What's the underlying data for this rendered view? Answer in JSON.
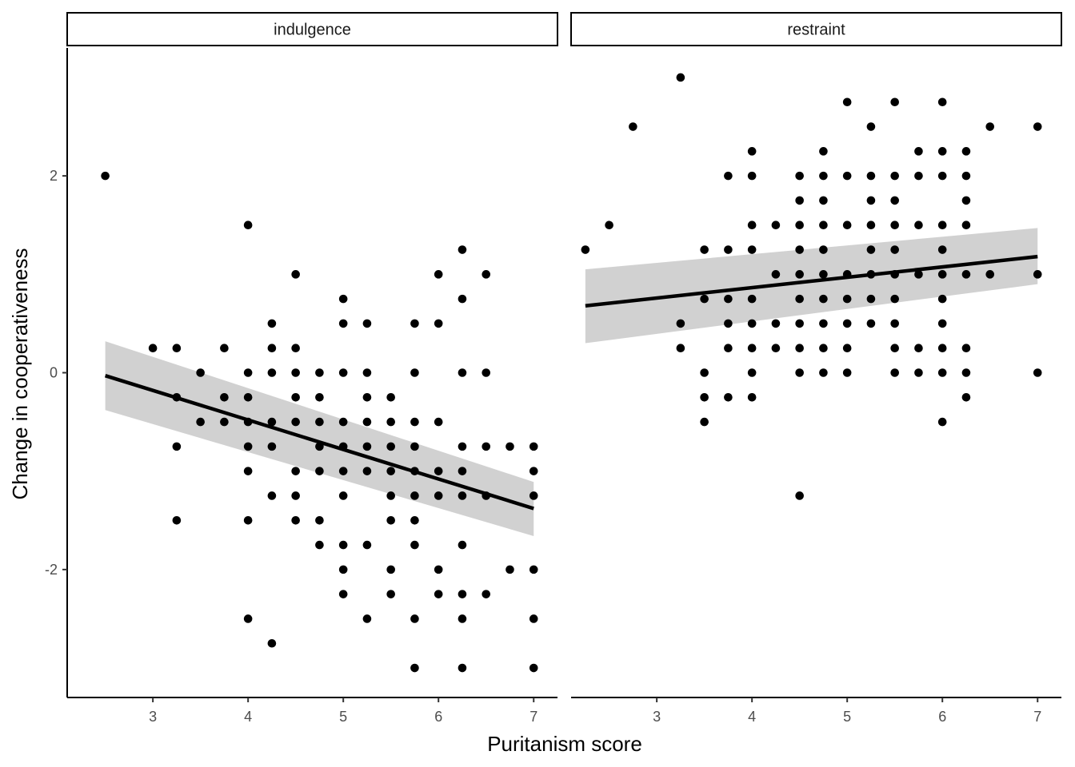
{
  "chart_data": {
    "type": "scatter",
    "xlabel": "Puritanism score",
    "ylabel": "Change in cooperativeness",
    "xlim": [
      2.1,
      7.25
    ],
    "ylim": [
      -3.3,
      3.3
    ],
    "x_ticks": [
      3,
      4,
      5,
      6,
      7
    ],
    "y_ticks": [
      -2,
      0,
      2
    ],
    "x_tick_labels": [
      "3",
      "4",
      "5",
      "6",
      "7"
    ],
    "y_tick_labels": [
      "-2",
      "0",
      "2"
    ],
    "grid": false,
    "colors": {
      "point": "#000000",
      "fit_line": "#000000",
      "ribbon": "#cccccc",
      "axis": "#000000",
      "strip_fill": "#ffffff"
    },
    "panels": [
      {
        "strip_label": "indulgence",
        "fit": {
          "x": [
            2.5,
            7.0
          ],
          "y": [
            -0.03,
            -1.38
          ]
        },
        "ribbon": {
          "x": [
            2.5,
            7.0
          ],
          "lower": [
            -0.38,
            -1.66
          ],
          "upper": [
            0.32,
            -1.11
          ]
        },
        "points": [
          [
            2.5,
            2
          ],
          [
            3,
            0.25
          ],
          [
            3.25,
            0.25
          ],
          [
            3.25,
            -0.25
          ],
          [
            3.25,
            -0.75
          ],
          [
            3.25,
            -1.5
          ],
          [
            3.5,
            0
          ],
          [
            3.5,
            -0.5
          ],
          [
            3.75,
            0.25
          ],
          [
            3.75,
            -0.25
          ],
          [
            3.75,
            -0.5
          ],
          [
            4,
            1.5
          ],
          [
            4,
            0
          ],
          [
            4,
            -0.25
          ],
          [
            4,
            -0.5
          ],
          [
            4,
            -0.75
          ],
          [
            4,
            -1
          ],
          [
            4,
            -1.5
          ],
          [
            4,
            -2.5
          ],
          [
            4.25,
            0.5
          ],
          [
            4.25,
            0.25
          ],
          [
            4.25,
            0
          ],
          [
            4.25,
            -0.5
          ],
          [
            4.25,
            -0.75
          ],
          [
            4.25,
            -1.25
          ],
          [
            4.25,
            -2.75
          ],
          [
            4.5,
            1
          ],
          [
            4.5,
            0.25
          ],
          [
            4.5,
            0
          ],
          [
            4.5,
            -0.25
          ],
          [
            4.5,
            -0.5
          ],
          [
            4.5,
            -1
          ],
          [
            4.5,
            -1.25
          ],
          [
            4.5,
            -1.5
          ],
          [
            4.75,
            0
          ],
          [
            4.75,
            -0.25
          ],
          [
            4.75,
            -0.5
          ],
          [
            4.75,
            -0.75
          ],
          [
            4.75,
            -1
          ],
          [
            4.75,
            -1.5
          ],
          [
            4.75,
            -1.75
          ],
          [
            5,
            0.75
          ],
          [
            5,
            0.5
          ],
          [
            5,
            0
          ],
          [
            5,
            -0.5
          ],
          [
            5,
            -0.75
          ],
          [
            5,
            -1
          ],
          [
            5,
            -1.25
          ],
          [
            5,
            -1.75
          ],
          [
            5,
            -2
          ],
          [
            5,
            -2.25
          ],
          [
            5.25,
            0.5
          ],
          [
            5.25,
            0
          ],
          [
            5.25,
            -0.25
          ],
          [
            5.25,
            -0.5
          ],
          [
            5.25,
            -0.75
          ],
          [
            5.25,
            -1
          ],
          [
            5.25,
            -1.75
          ],
          [
            5.25,
            -2.5
          ],
          [
            5.5,
            -0.25
          ],
          [
            5.5,
            -0.5
          ],
          [
            5.5,
            -0.75
          ],
          [
            5.5,
            -1
          ],
          [
            5.5,
            -1.25
          ],
          [
            5.5,
            -1.5
          ],
          [
            5.5,
            -2
          ],
          [
            5.5,
            -2.25
          ],
          [
            5.75,
            0.5
          ],
          [
            5.75,
            0
          ],
          [
            5.75,
            -0.5
          ],
          [
            5.75,
            -0.75
          ],
          [
            5.75,
            -1
          ],
          [
            5.75,
            -1.25
          ],
          [
            5.75,
            -1.5
          ],
          [
            5.75,
            -1.75
          ],
          [
            5.75,
            -2.5
          ],
          [
            5.75,
            -3
          ],
          [
            6,
            1
          ],
          [
            6,
            0.5
          ],
          [
            6,
            -0.5
          ],
          [
            6,
            -1
          ],
          [
            6,
            -1.25
          ],
          [
            6,
            -2
          ],
          [
            6,
            -2.25
          ],
          [
            6.25,
            1.25
          ],
          [
            6.25,
            0.75
          ],
          [
            6.25,
            0
          ],
          [
            6.25,
            -0.75
          ],
          [
            6.25,
            -1
          ],
          [
            6.25,
            -1.25
          ],
          [
            6.25,
            -1.75
          ],
          [
            6.25,
            -2.25
          ],
          [
            6.25,
            -2.5
          ],
          [
            6.25,
            -3
          ],
          [
            6.5,
            1
          ],
          [
            6.5,
            0
          ],
          [
            6.5,
            -0.75
          ],
          [
            6.5,
            -1.25
          ],
          [
            6.5,
            -2.25
          ],
          [
            6.75,
            -0.75
          ],
          [
            6.75,
            -2
          ],
          [
            7,
            -0.75
          ],
          [
            7,
            -1
          ],
          [
            7,
            -1.25
          ],
          [
            7,
            -2
          ],
          [
            7,
            -2.5
          ],
          [
            7,
            -3
          ]
        ]
      },
      {
        "strip_label": "restraint",
        "fit": {
          "x": [
            2.25,
            7.0
          ],
          "y": [
            0.68,
            1.18
          ]
        },
        "ribbon": {
          "x": [
            2.25,
            7.0
          ],
          "lower": [
            0.3,
            0.9
          ],
          "upper": [
            1.05,
            1.47
          ]
        },
        "points": [
          [
            2.25,
            1.25
          ],
          [
            2.5,
            1.5
          ],
          [
            2.75,
            2.5
          ],
          [
            3.25,
            3
          ],
          [
            3.25,
            0.5
          ],
          [
            3.25,
            0.25
          ],
          [
            3.5,
            1.25
          ],
          [
            3.5,
            0.75
          ],
          [
            3.5,
            0
          ],
          [
            3.5,
            -0.25
          ],
          [
            3.5,
            -0.5
          ],
          [
            3.75,
            2
          ],
          [
            3.75,
            1.25
          ],
          [
            3.75,
            0.75
          ],
          [
            3.75,
            0.5
          ],
          [
            3.75,
            0.25
          ],
          [
            3.75,
            -0.25
          ],
          [
            4,
            2.25
          ],
          [
            4,
            2
          ],
          [
            4,
            1.5
          ],
          [
            4,
            1.25
          ],
          [
            4,
            0.75
          ],
          [
            4,
            0.5
          ],
          [
            4,
            0.25
          ],
          [
            4,
            0
          ],
          [
            4,
            -0.25
          ],
          [
            4.25,
            1.5
          ],
          [
            4.25,
            1
          ],
          [
            4.25,
            0.5
          ],
          [
            4.25,
            0.25
          ],
          [
            4.5,
            2
          ],
          [
            4.5,
            1.75
          ],
          [
            4.5,
            1.5
          ],
          [
            4.5,
            1.25
          ],
          [
            4.5,
            1
          ],
          [
            4.5,
            0.75
          ],
          [
            4.5,
            0.5
          ],
          [
            4.5,
            0.25
          ],
          [
            4.5,
            0
          ],
          [
            4.5,
            -1.25
          ],
          [
            4.75,
            2.25
          ],
          [
            4.75,
            2
          ],
          [
            4.75,
            1.75
          ],
          [
            4.75,
            1.5
          ],
          [
            4.75,
            1.25
          ],
          [
            4.75,
            1
          ],
          [
            4.75,
            0.75
          ],
          [
            4.75,
            0.5
          ],
          [
            4.75,
            0.25
          ],
          [
            4.75,
            0
          ],
          [
            5,
            2.75
          ],
          [
            5,
            2
          ],
          [
            5,
            1.5
          ],
          [
            5,
            1
          ],
          [
            5,
            0.75
          ],
          [
            5,
            0.5
          ],
          [
            5,
            0.25
          ],
          [
            5,
            0
          ],
          [
            5.25,
            2.5
          ],
          [
            5.25,
            2
          ],
          [
            5.25,
            1.75
          ],
          [
            5.25,
            1.5
          ],
          [
            5.25,
            1.25
          ],
          [
            5.25,
            1
          ],
          [
            5.25,
            0.75
          ],
          [
            5.25,
            0.5
          ],
          [
            5.5,
            2.75
          ],
          [
            5.5,
            2
          ],
          [
            5.5,
            1.75
          ],
          [
            5.5,
            1.5
          ],
          [
            5.5,
            1.25
          ],
          [
            5.5,
            1
          ],
          [
            5.5,
            0.75
          ],
          [
            5.5,
            0.5
          ],
          [
            5.5,
            0.25
          ],
          [
            5.5,
            0
          ],
          [
            5.75,
            2.25
          ],
          [
            5.75,
            2
          ],
          [
            5.75,
            1.5
          ],
          [
            5.75,
            1
          ],
          [
            5.75,
            0.25
          ],
          [
            5.75,
            0
          ],
          [
            6,
            2.75
          ],
          [
            6,
            2.25
          ],
          [
            6,
            2
          ],
          [
            6,
            1.5
          ],
          [
            6,
            1.25
          ],
          [
            6,
            1
          ],
          [
            6,
            0.75
          ],
          [
            6,
            0.5
          ],
          [
            6,
            0.25
          ],
          [
            6,
            0
          ],
          [
            6,
            -0.5
          ],
          [
            6.25,
            2.25
          ],
          [
            6.25,
            2
          ],
          [
            6.25,
            1.75
          ],
          [
            6.25,
            1.5
          ],
          [
            6.25,
            1
          ],
          [
            6.25,
            0.25
          ],
          [
            6.25,
            0
          ],
          [
            6.25,
            -0.25
          ],
          [
            6.5,
            2.5
          ],
          [
            6.5,
            1
          ],
          [
            7,
            2.5
          ],
          [
            7,
            1
          ],
          [
            7,
            0
          ]
        ]
      }
    ]
  }
}
